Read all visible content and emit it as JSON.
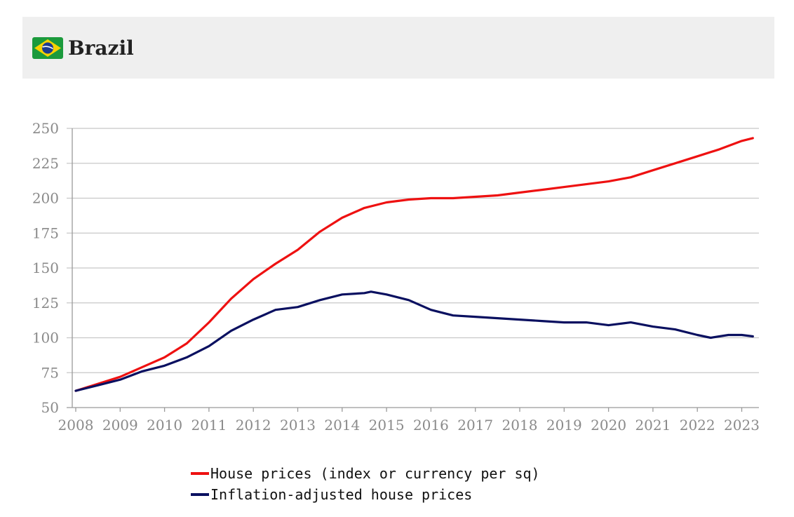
{
  "header": {
    "country": "Brazil",
    "flag_icon": "brazil-flag-icon"
  },
  "colors": {
    "header_bg": "#efefef",
    "grid": "#c8c8c8",
    "house_prices": "#ee1111",
    "inflation_adjusted": "#0a1060"
  },
  "chart_data": {
    "type": "line",
    "xlabel": "",
    "ylabel": "",
    "xlim": [
      2008,
      2023.45
    ],
    "ylim": [
      50,
      250
    ],
    "yticks": [
      50,
      75,
      100,
      125,
      150,
      175,
      200,
      225,
      250
    ],
    "xticks": [
      2008,
      2009,
      2010,
      2011,
      2012,
      2013,
      2014,
      2015,
      2016,
      2017,
      2018,
      2019,
      2020,
      2021,
      2022,
      2023
    ],
    "grid": true,
    "legend_position": "bottom",
    "series": [
      {
        "name": "House prices (index or currency per sq)",
        "color": "#ee1111",
        "points": [
          [
            2008.0,
            62
          ],
          [
            2008.5,
            67
          ],
          [
            2009.0,
            72
          ],
          [
            2009.5,
            79
          ],
          [
            2010.0,
            86
          ],
          [
            2010.5,
            96
          ],
          [
            2011.0,
            111
          ],
          [
            2011.5,
            128
          ],
          [
            2012.0,
            142
          ],
          [
            2012.5,
            153
          ],
          [
            2013.0,
            163
          ],
          [
            2013.5,
            176
          ],
          [
            2014.0,
            186
          ],
          [
            2014.5,
            193
          ],
          [
            2015.0,
            197
          ],
          [
            2015.5,
            199
          ],
          [
            2016.0,
            200
          ],
          [
            2016.5,
            200
          ],
          [
            2017.0,
            201
          ],
          [
            2017.5,
            202
          ],
          [
            2018.0,
            204
          ],
          [
            2018.5,
            206
          ],
          [
            2019.0,
            208
          ],
          [
            2019.5,
            210
          ],
          [
            2020.0,
            212
          ],
          [
            2020.5,
            215
          ],
          [
            2021.0,
            220
          ],
          [
            2021.5,
            225
          ],
          [
            2022.0,
            230
          ],
          [
            2022.5,
            235
          ],
          [
            2023.0,
            241
          ],
          [
            2023.25,
            243
          ]
        ]
      },
      {
        "name": "Inflation-adjusted house prices",
        "color": "#0a1060",
        "points": [
          [
            2008.0,
            62
          ],
          [
            2008.5,
            66
          ],
          [
            2009.0,
            70
          ],
          [
            2009.5,
            76
          ],
          [
            2010.0,
            80
          ],
          [
            2010.5,
            86
          ],
          [
            2011.0,
            94
          ],
          [
            2011.5,
            105
          ],
          [
            2012.0,
            113
          ],
          [
            2012.5,
            120
          ],
          [
            2013.0,
            122
          ],
          [
            2013.5,
            127
          ],
          [
            2014.0,
            131
          ],
          [
            2014.5,
            132
          ],
          [
            2014.65,
            133
          ],
          [
            2015.0,
            131
          ],
          [
            2015.5,
            127
          ],
          [
            2016.0,
            120
          ],
          [
            2016.5,
            116
          ],
          [
            2017.0,
            115
          ],
          [
            2017.5,
            114
          ],
          [
            2018.0,
            113
          ],
          [
            2018.5,
            112
          ],
          [
            2019.0,
            111
          ],
          [
            2019.5,
            111
          ],
          [
            2020.0,
            109
          ],
          [
            2020.5,
            111
          ],
          [
            2021.0,
            108
          ],
          [
            2021.5,
            106
          ],
          [
            2022.0,
            102
          ],
          [
            2022.3,
            100
          ],
          [
            2022.7,
            102
          ],
          [
            2023.0,
            102
          ],
          [
            2023.25,
            101
          ]
        ]
      }
    ]
  }
}
